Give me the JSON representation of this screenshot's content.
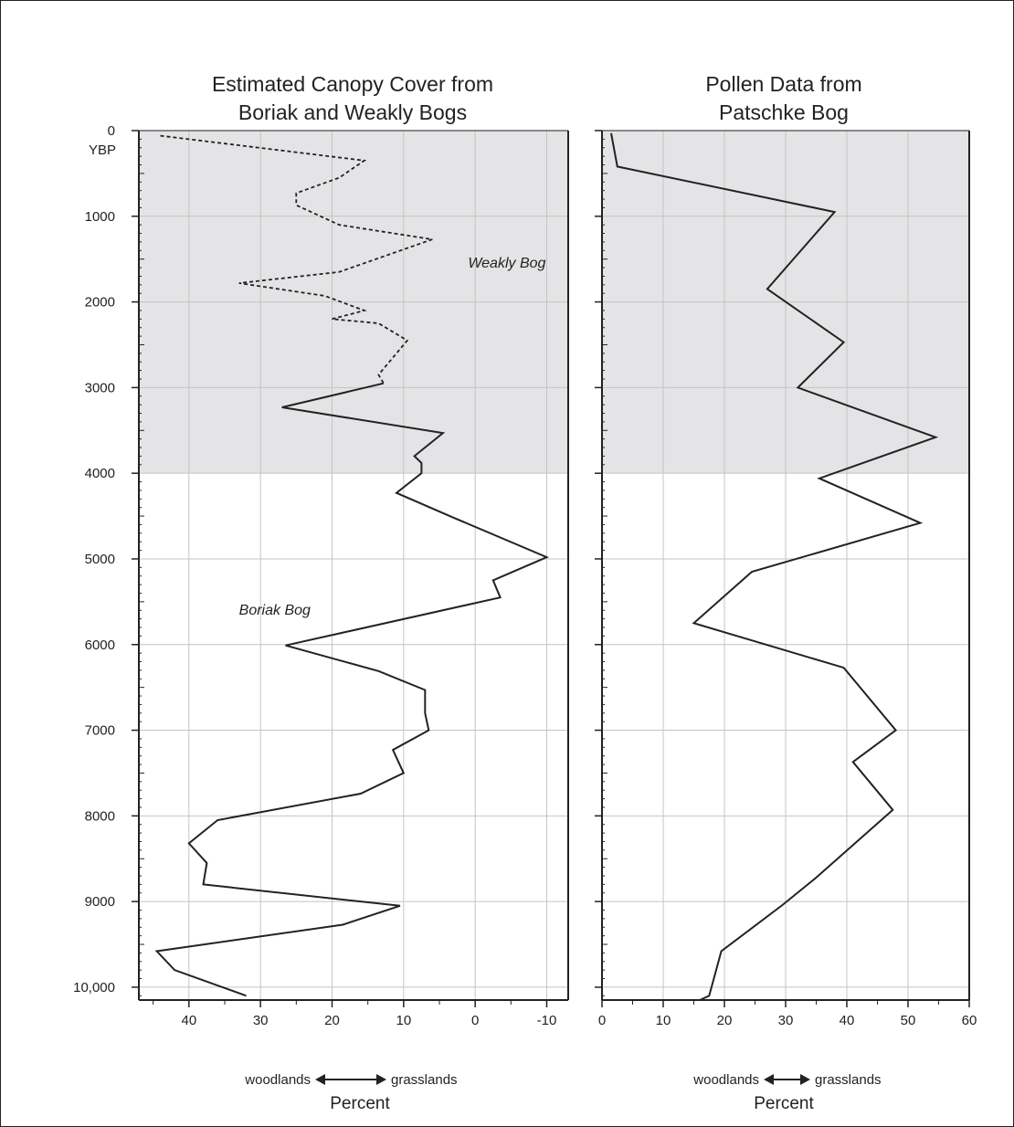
{
  "chart_data": [
    {
      "type": "line",
      "title_lines": [
        "Estimated Canopy Cover from",
        "Boriak and Weakly Bogs"
      ],
      "xlabel": "Percent",
      "direction_left": "woodlands",
      "direction_right": "grasslands",
      "x_reversed": true,
      "xlim": [
        47,
        -13
      ],
      "ylim": [
        0,
        10150
      ],
      "y_inverted": true,
      "x_ticks": [
        40,
        30,
        20,
        10,
        0,
        -10
      ],
      "x_tick_labels": [
        "40",
        "30",
        "20",
        "10",
        "0",
        "-10"
      ],
      "y_ticks": [
        0,
        1000,
        2000,
        3000,
        4000,
        5000,
        6000,
        7000,
        8000,
        9000,
        10000
      ],
      "y_tick_labels": [
        "0",
        "1000",
        "2000",
        "3000",
        "4000",
        "5000",
        "6000",
        "7000",
        "8000",
        "9000",
        "10,000"
      ],
      "y_unit_label": "YBP",
      "shaded_range": [
        0,
        4000
      ],
      "grid": true,
      "series": [
        {
          "name": "Weakly Bog",
          "style": "dashed",
          "points": [
            [
              44,
              60
            ],
            [
              15.5,
              350
            ],
            [
              19,
              550
            ],
            [
              25,
              730
            ],
            [
              25,
              870
            ],
            [
              19,
              1100
            ],
            [
              6,
              1270
            ],
            [
              19,
              1650
            ],
            [
              33,
              1780
            ],
            [
              21,
              1930
            ],
            [
              15.5,
              2100
            ],
            [
              20,
              2200
            ],
            [
              13.5,
              2250
            ],
            [
              9.5,
              2450
            ],
            [
              13.5,
              2850
            ],
            [
              12.8,
              2950
            ]
          ]
        },
        {
          "name": "Boriak Bog",
          "style": "solid",
          "points": [
            [
              12.8,
              2950
            ],
            [
              27,
              3230
            ],
            [
              4.5,
              3530
            ],
            [
              8.5,
              3800
            ],
            [
              7.5,
              3880
            ],
            [
              7.5,
              4000
            ],
            [
              11,
              4230
            ],
            [
              3,
              4520
            ],
            [
              -10,
              4980
            ],
            [
              -2.5,
              5250
            ],
            [
              -3.5,
              5450
            ],
            [
              26.5,
              6010
            ],
            [
              13.5,
              6310
            ],
            [
              7,
              6530
            ],
            [
              7,
              6800
            ],
            [
              6.5,
              7000
            ],
            [
              11.5,
              7230
            ],
            [
              10,
              7500
            ],
            [
              16,
              7740
            ],
            [
              36,
              8050
            ],
            [
              40,
              8320
            ],
            [
              37.5,
              8550
            ],
            [
              38,
              8800
            ],
            [
              10.5,
              9050
            ],
            [
              18.5,
              9270
            ],
            [
              44.5,
              9580
            ],
            [
              42,
              9800
            ],
            [
              32,
              10100
            ]
          ]
        }
      ],
      "annotations": [
        {
          "text": "Weakly Bog",
          "x": 1,
          "y": 1600
        },
        {
          "text": "Boriak Bog",
          "x": 33,
          "y": 5650
        }
      ]
    },
    {
      "type": "line",
      "title_lines": [
        "Pollen Data from",
        "Patschke Bog"
      ],
      "xlabel": "Percent",
      "direction_left": "woodlands",
      "direction_right": "grasslands",
      "xlim": [
        0,
        60
      ],
      "ylim": [
        0,
        10150
      ],
      "y_inverted": true,
      "x_ticks": [
        0,
        10,
        20,
        30,
        40,
        50,
        60
      ],
      "x_tick_labels": [
        "0",
        "10",
        "20",
        "30",
        "40",
        "50",
        "60"
      ],
      "y_ticks": [
        0,
        1000,
        2000,
        3000,
        4000,
        5000,
        6000,
        7000,
        8000,
        9000,
        10000
      ],
      "shaded_range": [
        0,
        4000
      ],
      "grid": true,
      "series": [
        {
          "style": "solid",
          "points": [
            [
              1.5,
              30
            ],
            [
              2.5,
              420
            ],
            [
              38,
              950
            ],
            [
              27,
              1850
            ],
            [
              39.5,
              2470
            ],
            [
              32,
              3000
            ],
            [
              54.5,
              3580
            ],
            [
              35.5,
              4060
            ],
            [
              52,
              4580
            ],
            [
              24.5,
              5150
            ],
            [
              15,
              5750
            ],
            [
              39.5,
              6270
            ],
            [
              48,
              7000
            ],
            [
              41,
              7370
            ],
            [
              47.5,
              7930
            ],
            [
              35,
              8720
            ],
            [
              29.5,
              9040
            ],
            [
              19.5,
              9580
            ],
            [
              17.5,
              10100
            ],
            [
              16,
              10150
            ]
          ]
        }
      ]
    }
  ]
}
